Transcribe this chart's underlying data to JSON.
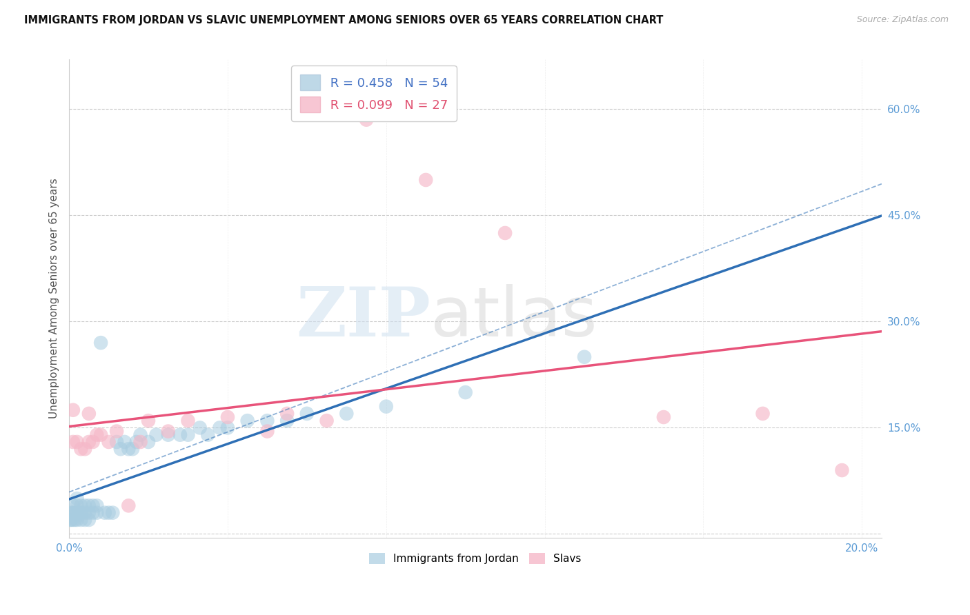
{
  "title": "IMMIGRANTS FROM JORDAN VS SLAVIC UNEMPLOYMENT AMONG SENIORS OVER 65 YEARS CORRELATION CHART",
  "source": "Source: ZipAtlas.com",
  "ylabel": "Unemployment Among Seniors over 65 years",
  "xlim": [
    0.0,
    0.205
  ],
  "ylim": [
    -0.005,
    0.67
  ],
  "xticks": [
    0.0,
    0.04,
    0.08,
    0.12,
    0.16,
    0.2
  ],
  "yticks_right": [
    0.0,
    0.15,
    0.3,
    0.45,
    0.6
  ],
  "blue_color": "#a8cce0",
  "pink_color": "#f5b8c8",
  "blue_line_color": "#2e6fb5",
  "pink_line_color": "#e8537a",
  "legend_r1": "R = 0.458",
  "legend_n1": "N = 54",
  "legend_r2": "R = 0.099",
  "legend_n2": "N = 27",
  "jordan_x": [
    0.0003,
    0.0005,
    0.0007,
    0.001,
    0.001,
    0.001,
    0.0015,
    0.0015,
    0.002,
    0.002,
    0.002,
    0.002,
    0.0025,
    0.003,
    0.003,
    0.003,
    0.004,
    0.004,
    0.004,
    0.005,
    0.005,
    0.005,
    0.006,
    0.006,
    0.007,
    0.007,
    0.008,
    0.009,
    0.01,
    0.011,
    0.012,
    0.013,
    0.014,
    0.015,
    0.016,
    0.017,
    0.018,
    0.02,
    0.022,
    0.025,
    0.028,
    0.03,
    0.033,
    0.035,
    0.038,
    0.04,
    0.045,
    0.05,
    0.055,
    0.06,
    0.07,
    0.08,
    0.1,
    0.13
  ],
  "jordan_y": [
    0.02,
    0.02,
    0.03,
    0.02,
    0.03,
    0.04,
    0.02,
    0.03,
    0.02,
    0.03,
    0.04,
    0.05,
    0.03,
    0.02,
    0.03,
    0.04,
    0.02,
    0.03,
    0.04,
    0.02,
    0.03,
    0.04,
    0.03,
    0.04,
    0.03,
    0.04,
    0.27,
    0.03,
    0.03,
    0.03,
    0.13,
    0.12,
    0.13,
    0.12,
    0.12,
    0.13,
    0.14,
    0.13,
    0.14,
    0.14,
    0.14,
    0.14,
    0.15,
    0.14,
    0.15,
    0.15,
    0.16,
    0.16,
    0.16,
    0.17,
    0.17,
    0.18,
    0.2,
    0.25
  ],
  "slavs_x": [
    0.001,
    0.001,
    0.002,
    0.003,
    0.004,
    0.005,
    0.005,
    0.006,
    0.007,
    0.008,
    0.01,
    0.012,
    0.015,
    0.018,
    0.02,
    0.025,
    0.03,
    0.04,
    0.05,
    0.055,
    0.065,
    0.075,
    0.09,
    0.11,
    0.15,
    0.175,
    0.195
  ],
  "slavs_y": [
    0.13,
    0.175,
    0.13,
    0.12,
    0.12,
    0.17,
    0.13,
    0.13,
    0.14,
    0.14,
    0.13,
    0.145,
    0.04,
    0.13,
    0.16,
    0.145,
    0.16,
    0.165,
    0.145,
    0.17,
    0.16,
    0.585,
    0.5,
    0.425,
    0.165,
    0.17,
    0.09
  ]
}
